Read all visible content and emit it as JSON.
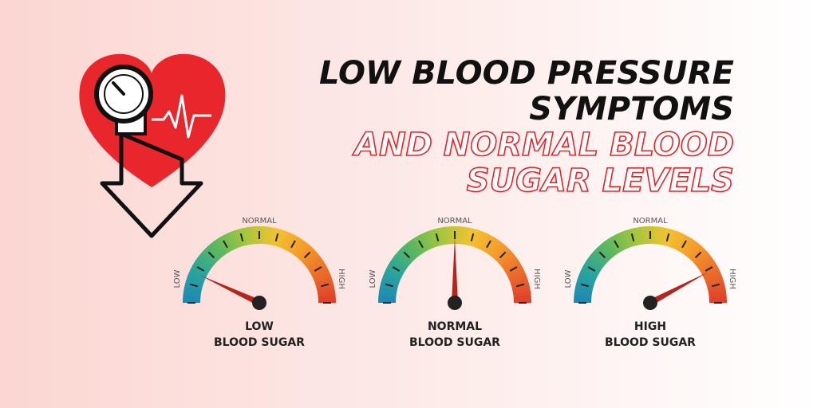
{
  "header": {
    "title_lines": [
      "LOW BLOOD PRESSURE",
      "SYMPTOMS"
    ],
    "subtitle_lines": [
      "AND NORMAL BLOOD",
      "SUGAR LEVELS"
    ]
  },
  "gauges": [
    {
      "scale_labels": {
        "low": "LOW",
        "normal": "NORMAL",
        "high": "HIGH"
      },
      "caption_lines": [
        "LOW",
        "BLOOD SUGAR"
      ]
    },
    {
      "scale_labels": {
        "low": "LOW",
        "normal": "NORMAL",
        "high": "HIGH"
      },
      "caption_lines": [
        "NORMAL",
        "BLOOD SUGAR"
      ]
    },
    {
      "scale_labels": {
        "low": "LOW",
        "normal": "NORMAL",
        "high": "HIGH"
      },
      "caption_lines": [
        "HIGH",
        "BLOOD SUGAR"
      ]
    }
  ]
}
